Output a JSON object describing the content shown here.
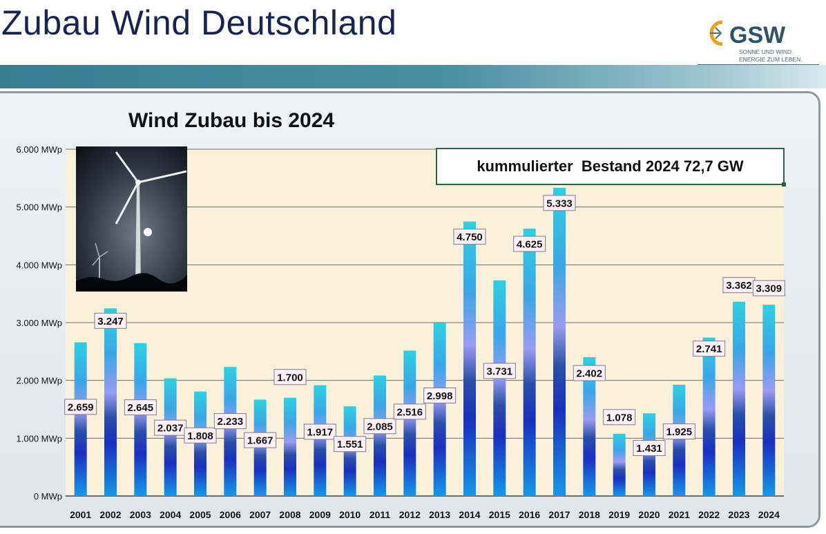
{
  "slide": {
    "title": "Zubau Wind Deutschland"
  },
  "logo": {
    "brand": "GSW",
    "tagline_1": "SONNE UND WIND.",
    "tagline_2": "ENERGIE ZUM LEBEN."
  },
  "callout": {
    "text": "kummulierter  Bestand 2024 72,7 GW"
  },
  "colors": {
    "title": "#17244f",
    "bar_top": "#2ed0e0",
    "bar_mid": "#9a9cf0",
    "bar_low": "#1a2fc0",
    "bar_bottom": "#1598e8",
    "plot_bg": "#fbf1da"
  },
  "chart_data": {
    "type": "bar",
    "title": "Wind Zubau bis 2024",
    "categories": [
      "2001",
      "2002",
      "2003",
      "2004",
      "2005",
      "2006",
      "2007",
      "2008",
      "2009",
      "2010",
      "2011",
      "2012",
      "2013",
      "2014",
      "2015",
      "2016",
      "2017",
      "2018",
      "2019",
      "2020",
      "2021",
      "2022",
      "2023",
      "2024"
    ],
    "values": [
      2659,
      3247,
      2645,
      2037,
      1808,
      2233,
      1667,
      1700,
      1917,
      1551,
      2085,
      2516,
      2998,
      4750,
      3731,
      4625,
      5333,
      2402,
      1078,
      1431,
      1925,
      2741,
      3362,
      3309
    ],
    "value_labels": [
      "2.659",
      "3.247",
      "2.645",
      "2.037",
      "1.808",
      "2.233",
      "1.667",
      "1.700",
      "1.917",
      "1.551",
      "2.085",
      "2.516",
      "2.998",
      "4.750",
      "3.731",
      "4.625",
      "5.333",
      "2.402",
      "1.078",
      "1.431",
      "1.925",
      "2.741",
      "3.362",
      "3.309"
    ],
    "y_ticks": [
      0,
      1000,
      2000,
      3000,
      4000,
      5000,
      6000
    ],
    "y_tick_labels": [
      "0 MWp",
      "1.000 MWp",
      "2.000 MWp",
      "3.000 MWp",
      "4.000 MWp",
      "5.000 MWp",
      "6.000 MWp"
    ],
    "ylim": [
      0,
      6000
    ],
    "grid": true
  }
}
